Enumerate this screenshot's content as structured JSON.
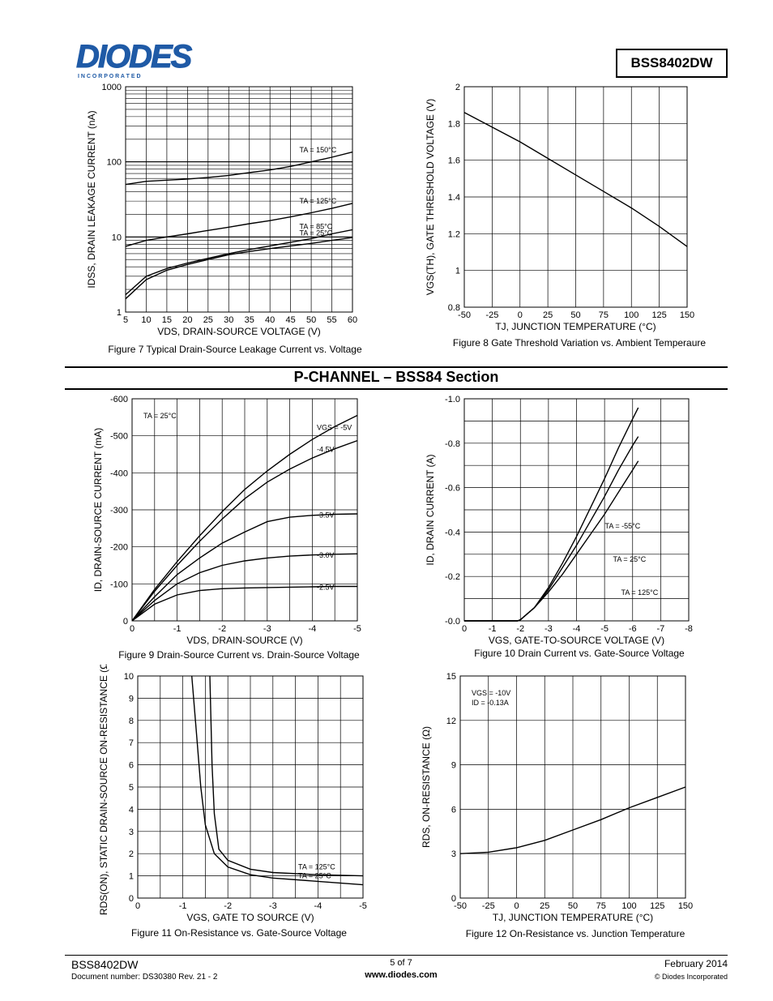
{
  "header": {
    "logo_text": "DIODES",
    "logo_sub": "I N C O R P O R A T E D",
    "part_number": "BSS8402DW"
  },
  "section_title": "P-CHANNEL – BSS84 Section",
  "figures": {
    "fig7": "Figure 7  Typical Drain-Source Leakage Current vs. Voltage",
    "fig8": "Figure 8 Gate Threshold Variation vs. Ambient Temperaure",
    "fig9": "Figure 9 Drain-Source Current vs. Drain-Source Voltage",
    "fig10": "Figure 10 Drain Current vs. Gate-Source Voltage",
    "fig11": "Figure 11 On-Resistance vs. Gate-Source Voltage",
    "fig12": "Figure 12 On-Resistance vs. Junction Temperature"
  },
  "chart_data": [
    {
      "id": "fig7",
      "type": "line",
      "scale": "log-y",
      "xlabel": "VDS, DRAIN-SOURCE VOLTAGE (V)",
      "ylabel": "IDSS, DRAIN LEAKAGE CURRENT (nA)",
      "xlim": [
        5,
        60
      ],
      "ylim": [
        1,
        1000
      ],
      "xticks": [
        "5",
        "10",
        "15",
        "20",
        "25",
        "30",
        "35",
        "40",
        "45",
        "50",
        "55",
        "60"
      ],
      "yticks": [
        "1",
        "10",
        "100",
        "1000"
      ],
      "series": [
        {
          "name": "TA = 150°C",
          "x": [
            5,
            10,
            15,
            20,
            25,
            30,
            35,
            40,
            45,
            50,
            55,
            60
          ],
          "y": [
            50,
            55,
            57,
            59,
            62,
            66,
            72,
            78,
            87,
            100,
            115,
            135
          ]
        },
        {
          "name": "TA = 125°C",
          "x": [
            5,
            10,
            15,
            20,
            25,
            30,
            35,
            40,
            45,
            50,
            55,
            60
          ],
          "y": [
            7.5,
            9,
            10,
            11,
            12.2,
            13.5,
            15,
            16.5,
            18.5,
            21,
            24,
            28
          ]
        },
        {
          "name": "TA = 85°C",
          "x": [
            5,
            10,
            15,
            20,
            25,
            30,
            35,
            40,
            45,
            50,
            55,
            60
          ],
          "y": [
            1.7,
            3,
            3.8,
            4.5,
            5.2,
            6,
            6.8,
            7.6,
            8.5,
            9.5,
            11,
            12.5
          ]
        },
        {
          "name": "TA = 25°C",
          "x": [
            5,
            10,
            15,
            20,
            25,
            30,
            35,
            40,
            45,
            50,
            55,
            60
          ],
          "y": [
            1.5,
            2.7,
            3.6,
            4.3,
            5,
            5.8,
            6.4,
            7,
            7.6,
            8.2,
            9,
            9.8
          ]
        }
      ]
    },
    {
      "id": "fig8",
      "type": "line",
      "xlabel": "TJ, JUNCTION TEMPERATURE (°C)",
      "ylabel": "VGS(TH), GATE THRESHOLD VOLTAGE (V)",
      "xlim": [
        -50,
        150
      ],
      "ylim": [
        0.8,
        2
      ],
      "xticks": [
        "-50",
        "-25",
        "0",
        "25",
        "50",
        "75",
        "100",
        "125",
        "150"
      ],
      "yticks": [
        "0.8",
        "1",
        "1.2",
        "1.4",
        "1.6",
        "1.8",
        "2"
      ],
      "series": [
        {
          "x": [
            -50,
            -25,
            0,
            25,
            50,
            75,
            100,
            125,
            150
          ],
          "y": [
            1.86,
            1.78,
            1.7,
            1.61,
            1.52,
            1.43,
            1.34,
            1.24,
            1.13
          ]
        }
      ]
    },
    {
      "id": "fig9",
      "type": "line",
      "xlabel": "VDS, DRAIN-SOURCE (V)",
      "ylabel": "ID, DRAIN-SOURCE CURRENT (mA)",
      "xlim": [
        0,
        -5
      ],
      "ylim": [
        0,
        -600
      ],
      "xticks": [
        "0",
        "-1",
        "-2",
        "-3",
        "-4",
        "-5"
      ],
      "yticks": [
        "0",
        "-100",
        "-200",
        "-300",
        "-400",
        "-500",
        "-600"
      ],
      "annotation": "TA = 25°C",
      "series": [
        {
          "name": "VGS = -5V",
          "x": [
            0,
            -0.5,
            -1,
            -1.5,
            -2,
            -2.5,
            -3,
            -3.5,
            -4,
            -4.5,
            -5
          ],
          "y": [
            0,
            -85,
            -160,
            -230,
            -295,
            -355,
            -405,
            -450,
            -490,
            -525,
            -555
          ]
        },
        {
          "name": "-4.5V",
          "x": [
            0,
            -0.5,
            -1,
            -1.5,
            -2,
            -2.5,
            -3,
            -3.5,
            -4,
            -4.5,
            -5
          ],
          "y": [
            0,
            -80,
            -150,
            -215,
            -275,
            -330,
            -375,
            -410,
            -440,
            -465,
            -487
          ]
        },
        {
          "name": "-3.5V",
          "x": [
            0,
            -0.5,
            -1,
            -1.5,
            -2,
            -2.5,
            -3,
            -3.5,
            -4,
            -4.5,
            -5
          ],
          "y": [
            0,
            -65,
            -125,
            -170,
            -210,
            -240,
            -268,
            -280,
            -285,
            -288,
            -289
          ]
        },
        {
          "name": "-3.0V",
          "x": [
            0,
            -0.5,
            -1,
            -1.5,
            -2,
            -2.5,
            -3,
            -3.5,
            -4,
            -4.5,
            -5
          ],
          "y": [
            0,
            -55,
            -100,
            -130,
            -150,
            -162,
            -170,
            -175,
            -178,
            -180,
            -181
          ]
        },
        {
          "name": "-2.5V",
          "x": [
            0,
            -0.5,
            -1,
            -1.5,
            -2,
            -2.5,
            -3,
            -3.5,
            -4,
            -4.5,
            -5
          ],
          "y": [
            0,
            -45,
            -70,
            -82,
            -87,
            -89,
            -90,
            -91,
            -92,
            -93,
            -93
          ]
        }
      ]
    },
    {
      "id": "fig10",
      "type": "line",
      "xlabel": "VGS, GATE-TO-SOURCE VOLTAGE (V)",
      "ylabel": "ID, DRAIN CURRENT (A)",
      "xlim": [
        0,
        -8
      ],
      "ylim": [
        0,
        -1.0
      ],
      "xticks": [
        "0",
        "-1",
        "-2",
        "-3",
        "-4",
        "-5",
        "-6",
        "-7",
        "-8"
      ],
      "yticks": [
        "-0.0",
        "-0.2",
        "-0.4",
        "-0.6",
        "-0.8",
        "-1.0"
      ],
      "series": [
        {
          "name": "TA = -55°C",
          "x": [
            0,
            -1.9,
            -2.0,
            -2.5,
            -3,
            -3.5,
            -4,
            -4.5,
            -5,
            -5.5,
            -6,
            -6.2
          ],
          "y": [
            0,
            0,
            -0.005,
            -0.06,
            -0.15,
            -0.26,
            -0.38,
            -0.51,
            -0.64,
            -0.78,
            -0.91,
            -0.96
          ]
        },
        {
          "name": "TA = 25°C",
          "x": [
            0,
            -1.9,
            -2.0,
            -2.5,
            -3,
            -3.5,
            -4,
            -4.5,
            -5,
            -5.5,
            -6,
            -6.2
          ],
          "y": [
            0,
            0,
            -0.005,
            -0.06,
            -0.14,
            -0.24,
            -0.34,
            -0.45,
            -0.56,
            -0.68,
            -0.79,
            -0.83
          ]
        },
        {
          "name": "TA = 125°C",
          "x": [
            0,
            -1.9,
            -2.0,
            -2.5,
            -3,
            -3.5,
            -4,
            -4.5,
            -5,
            -5.5,
            -6,
            -6.2
          ],
          "y": [
            0,
            0,
            -0.005,
            -0.06,
            -0.13,
            -0.21,
            -0.3,
            -0.39,
            -0.48,
            -0.58,
            -0.68,
            -0.72
          ]
        }
      ]
    },
    {
      "id": "fig11",
      "type": "line",
      "xlabel": "VGS, GATE TO SOURCE (V)",
      "ylabel": "RDS(ON), STATIC DRAIN-SOURCE ON-RESISTANCE (Ω)",
      "xlim": [
        0,
        -5
      ],
      "ylim": [
        0,
        10
      ],
      "xticks": [
        "0",
        "-1",
        "-2",
        "-3",
        "-4",
        "-5"
      ],
      "yticks": [
        "0",
        "1",
        "2",
        "3",
        "4",
        "5",
        "6",
        "7",
        "8",
        "9",
        "10"
      ],
      "series": [
        {
          "name": "TA = 125°C",
          "x": [
            -1.6,
            -1.65,
            -1.7,
            -1.8,
            -2,
            -2.5,
            -3,
            -4,
            -5
          ],
          "y": [
            10,
            6,
            3.8,
            2.2,
            1.7,
            1.3,
            1.15,
            1.05,
            1.0
          ]
        },
        {
          "name": "TA = 25°C",
          "x": [
            -1.2,
            -1.3,
            -1.4,
            -1.5,
            -1.7,
            -2,
            -2.5,
            -3,
            -4,
            -5
          ],
          "y": [
            10,
            7.5,
            5,
            3.3,
            2,
            1.4,
            1.05,
            0.9,
            0.75,
            0.6
          ]
        }
      ]
    },
    {
      "id": "fig12",
      "type": "line",
      "xlabel": "TJ, JUNCTION TEMPERATURE (°C)",
      "ylabel": "RDS, ON-RESISTANCE (Ω)",
      "xlim": [
        -50,
        150
      ],
      "ylim": [
        0,
        15
      ],
      "xticks": [
        "-50",
        "-25",
        "0",
        "25",
        "50",
        "75",
        "100",
        "125",
        "150"
      ],
      "yticks": [
        "0",
        "3",
        "6",
        "9",
        "12",
        "15"
      ],
      "annotation": [
        "VGS = -10V",
        "ID = -0.13A"
      ],
      "series": [
        {
          "x": [
            -50,
            -25,
            0,
            25,
            50,
            75,
            100,
            125,
            150
          ],
          "y": [
            3.0,
            3.1,
            3.4,
            3.9,
            4.6,
            5.3,
            6.1,
            6.8,
            7.5
          ]
        }
      ]
    }
  ],
  "footer": {
    "part": "BSS8402DW",
    "docnum": "Document number: DS30380 Rev. 21 - 2",
    "page": "5 of 7",
    "url": "www.diodes.com",
    "date": "February 2014",
    "copyright": "© Diodes Incorporated"
  }
}
